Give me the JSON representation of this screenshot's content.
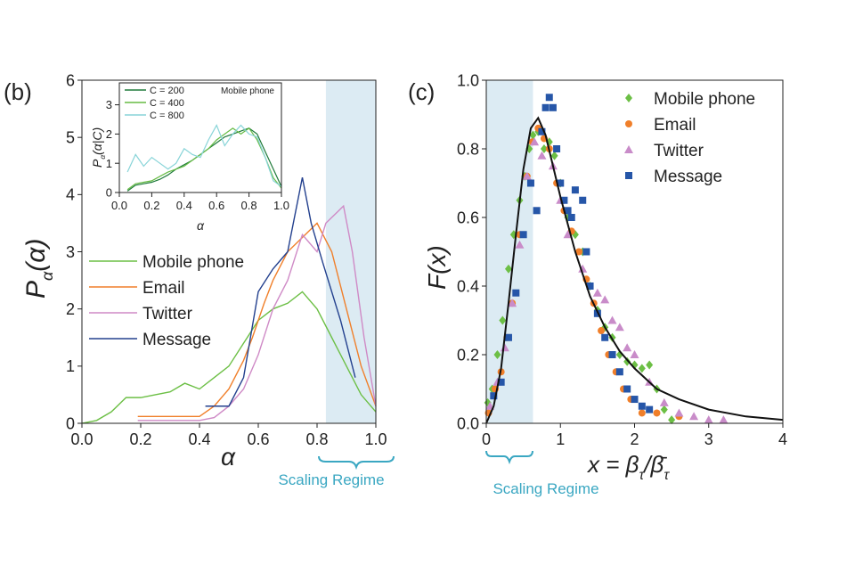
{
  "chart_data": [
    {
      "type": "line",
      "label": "(b)",
      "xlabel_parts": [
        "α"
      ],
      "ylabel_parts": [
        "P",
        "α",
        "(α)"
      ],
      "xlim": [
        0,
        1
      ],
      "ylim": [
        0,
        6
      ],
      "xticks": [
        {
          "value": 0,
          "label": "0.0"
        },
        {
          "value": 0.2,
          "label": "0.2"
        },
        {
          "value": 0.4,
          "label": "0.4"
        },
        {
          "value": 0.6,
          "label": "0.6"
        },
        {
          "value": 0.8,
          "label": "0.8"
        },
        {
          "value": 1,
          "label": "1.0"
        }
      ],
      "yticks": [
        0,
        1,
        2,
        3,
        4,
        5,
        6
      ],
      "shade": [
        0.83,
        1
      ],
      "shade_color": "#dcebf3",
      "annotation": "Scaling Regime",
      "series": [
        {
          "name": "Mobile phone",
          "color": "#6cbf45",
          "x": [
            0,
            0.05,
            0.1,
            0.15,
            0.2,
            0.25,
            0.3,
            0.35,
            0.4,
            0.45,
            0.5,
            0.55,
            0.6,
            0.65,
            0.7,
            0.75,
            0.8,
            0.85,
            0.9,
            0.95,
            1
          ],
          "values": [
            0,
            0.05,
            0.2,
            0.45,
            0.45,
            0.5,
            0.55,
            0.7,
            0.6,
            0.8,
            1.0,
            1.4,
            1.8,
            2.0,
            2.1,
            2.3,
            2.0,
            1.5,
            1.0,
            0.5,
            0.2
          ]
        },
        {
          "name": "Email",
          "color": "#f07f2a",
          "x": [
            0.19,
            0.4,
            0.45,
            0.5,
            0.55,
            0.58,
            0.62,
            0.65,
            0.7,
            0.76,
            0.8,
            0.85,
            0.9,
            0.95,
            1
          ],
          "values": [
            0.12,
            0.12,
            0.3,
            0.6,
            1.1,
            1.5,
            2.1,
            2.5,
            3.0,
            3.3,
            3.5,
            3.0,
            2.0,
            1.0,
            0.3
          ]
        },
        {
          "name": "Twitter",
          "color": "#cf8ac6",
          "x": [
            0.19,
            0.4,
            0.45,
            0.5,
            0.55,
            0.6,
            0.65,
            0.7,
            0.75,
            0.8,
            0.83,
            0.87,
            0.89,
            0.92,
            0.96,
            1
          ],
          "values": [
            0.05,
            0.05,
            0.1,
            0.3,
            0.6,
            1.2,
            2.0,
            2.5,
            3.3,
            3.0,
            3.5,
            3.7,
            3.8,
            3.0,
            1.5,
            0.3
          ]
        },
        {
          "name": "Message",
          "color": "#23408e",
          "x": [
            0.42,
            0.5,
            0.55,
            0.6,
            0.65,
            0.7,
            0.75,
            0.78,
            0.82,
            0.88,
            0.93
          ],
          "values": [
            0.3,
            0.3,
            0.8,
            2.3,
            2.7,
            3.0,
            4.3,
            3.5,
            2.8,
            1.8,
            0.8
          ]
        }
      ]
    },
    {
      "type": "line",
      "label": "Mobile phone",
      "xlabel_parts": [
        "α"
      ],
      "ylabel_parts": [
        "P",
        "α",
        "(α|C)"
      ],
      "xlim": [
        0,
        1
      ],
      "ylim": [
        0,
        3.75
      ],
      "xticks": [
        {
          "value": 0,
          "label": "0.0"
        },
        {
          "value": 0.2,
          "label": "0.2"
        },
        {
          "value": 0.4,
          "label": "0.4"
        },
        {
          "value": 0.6,
          "label": "0.6"
        },
        {
          "value": 0.8,
          "label": "0.8"
        },
        {
          "value": 1,
          "label": "1.0"
        }
      ],
      "yticks": [
        0,
        1,
        2,
        3
      ],
      "series": [
        {
          "name": "C = 200",
          "color": "#1e7a3a",
          "x": [
            0.05,
            0.1,
            0.15,
            0.2,
            0.25,
            0.3,
            0.35,
            0.4,
            0.45,
            0.5,
            0.55,
            0.6,
            0.65,
            0.7,
            0.75,
            0.8,
            0.85,
            0.9,
            0.95,
            1
          ],
          "values": [
            0.05,
            0.25,
            0.3,
            0.35,
            0.45,
            0.6,
            0.8,
            0.95,
            1.1,
            1.3,
            1.5,
            1.7,
            1.9,
            2.0,
            2.1,
            2.2,
            2.0,
            1.4,
            0.8,
            0.2
          ]
        },
        {
          "name": "C = 400",
          "color": "#66bb44",
          "x": [
            0.05,
            0.1,
            0.15,
            0.2,
            0.25,
            0.3,
            0.35,
            0.4,
            0.45,
            0.5,
            0.55,
            0.6,
            0.65,
            0.7,
            0.75,
            0.8,
            0.85,
            0.9,
            0.95,
            1
          ],
          "values": [
            0.1,
            0.3,
            0.35,
            0.4,
            0.55,
            0.7,
            0.8,
            0.9,
            1.1,
            1.3,
            1.5,
            1.8,
            2.0,
            2.2,
            2.0,
            2.2,
            1.8,
            1.2,
            0.5,
            0.15
          ]
        },
        {
          "name": "C = 800",
          "color": "#88d4d8",
          "x": [
            0.05,
            0.1,
            0.15,
            0.2,
            0.25,
            0.3,
            0.35,
            0.4,
            0.45,
            0.5,
            0.55,
            0.6,
            0.65,
            0.7,
            0.75,
            0.8,
            0.85,
            0.9,
            0.95,
            1
          ],
          "values": [
            0.7,
            1.3,
            0.9,
            1.2,
            1.0,
            0.8,
            1.0,
            1.5,
            1.3,
            1.2,
            1.8,
            2.3,
            1.6,
            2.0,
            2.3,
            2.0,
            1.9,
            1.2,
            0.4,
            0.2
          ]
        }
      ]
    },
    {
      "type": "scatter",
      "label": "(c)",
      "xlabel_parts": [
        "x = β",
        "τ",
        "/β̄",
        "τ"
      ],
      "ylabel_parts": [
        "F(x)"
      ],
      "xlim": [
        0,
        4
      ],
      "ylim": [
        0,
        1
      ],
      "xticks": [
        0,
        1,
        2,
        3,
        4
      ],
      "yticks": [
        {
          "value": 0,
          "label": "0.0"
        },
        {
          "value": 0.2,
          "label": "0.2"
        },
        {
          "value": 0.4,
          "label": "0.4"
        },
        {
          "value": 0.6,
          "label": "0.6"
        },
        {
          "value": 0.8,
          "label": "0.8"
        },
        {
          "value": 1,
          "label": "1.0"
        }
      ],
      "shade": [
        0,
        0.63
      ],
      "shade_color": "#dcebf3",
      "annotation": "Scaling Regime",
      "series": [
        {
          "name": "Mobile phone",
          "color": "#6cbf45",
          "marker": "diamond",
          "x": [
            0.02,
            0.08,
            0.15,
            0.22,
            0.3,
            0.37,
            0.45,
            0.52,
            0.58,
            0.63,
            0.7,
            0.78,
            0.85,
            0.92,
            1.0,
            1.1,
            1.2,
            1.3,
            1.4,
            1.5,
            1.6,
            1.7,
            1.8,
            1.9,
            2.0,
            2.1,
            2.2,
            2.3,
            2.4,
            2.5
          ],
          "values": [
            0.06,
            0.1,
            0.2,
            0.3,
            0.45,
            0.55,
            0.65,
            0.72,
            0.8,
            0.84,
            0.85,
            0.8,
            0.82,
            0.78,
            0.7,
            0.6,
            0.55,
            0.5,
            0.4,
            0.33,
            0.28,
            0.25,
            0.2,
            0.18,
            0.17,
            0.16,
            0.17,
            0.1,
            0.04,
            0.01
          ]
        },
        {
          "name": "Email",
          "color": "#f07f2a",
          "marker": "circle",
          "x": [
            0.03,
            0.12,
            0.2,
            0.28,
            0.35,
            0.45,
            0.55,
            0.62,
            0.7,
            0.78,
            0.85,
            0.95,
            1.05,
            1.15,
            1.25,
            1.35,
            1.45,
            1.55,
            1.65,
            1.75,
            1.85,
            1.95,
            2.1,
            2.3,
            2.6
          ],
          "values": [
            0.03,
            0.1,
            0.15,
            0.25,
            0.35,
            0.55,
            0.72,
            0.82,
            0.86,
            0.83,
            0.8,
            0.7,
            0.62,
            0.56,
            0.5,
            0.42,
            0.35,
            0.27,
            0.2,
            0.15,
            0.1,
            0.07,
            0.03,
            0.03,
            0.02
          ]
        },
        {
          "name": "Twitter",
          "color": "#c98cc9",
          "marker": "triangle",
          "x": [
            0.05,
            0.15,
            0.25,
            0.35,
            0.45,
            0.55,
            0.65,
            0.75,
            0.9,
            1.0,
            1.1,
            1.3,
            1.5,
            1.6,
            1.7,
            1.8,
            1.9,
            2.0,
            2.2,
            2.4,
            2.6,
            2.8,
            3.0,
            3.2
          ],
          "values": [
            0.05,
            0.12,
            0.22,
            0.35,
            0.52,
            0.72,
            0.82,
            0.78,
            0.75,
            0.65,
            0.55,
            0.45,
            0.38,
            0.36,
            0.3,
            0.28,
            0.22,
            0.2,
            0.12,
            0.06,
            0.03,
            0.02,
            0.01,
            0.01
          ]
        },
        {
          "name": "Message",
          "color": "#2656a8",
          "marker": "square",
          "x": [
            0.1,
            0.2,
            0.3,
            0.4,
            0.5,
            0.6,
            0.68,
            0.75,
            0.8,
            0.85,
            0.9,
            0.95,
            1.0,
            1.05,
            1.1,
            1.15,
            1.2,
            1.3,
            1.35,
            1.4,
            1.5,
            1.6,
            1.7,
            1.8,
            1.9,
            2.0,
            2.1,
            2.2
          ],
          "values": [
            0.08,
            0.12,
            0.25,
            0.38,
            0.55,
            0.7,
            0.62,
            0.85,
            0.92,
            0.95,
            0.92,
            0.8,
            0.7,
            0.65,
            0.62,
            0.6,
            0.68,
            0.65,
            0.5,
            0.4,
            0.32,
            0.25,
            0.2,
            0.15,
            0.1,
            0.07,
            0.05,
            0.04
          ]
        }
      ],
      "curve": {
        "color": "#111111",
        "x": [
          0,
          0.1,
          0.2,
          0.3,
          0.4,
          0.5,
          0.6,
          0.7,
          0.8,
          0.9,
          1.0,
          1.2,
          1.4,
          1.6,
          1.8,
          2.0,
          2.3,
          2.6,
          3.0,
          3.5,
          4.0
        ],
        "values": [
          0,
          0.05,
          0.16,
          0.35,
          0.55,
          0.74,
          0.86,
          0.89,
          0.84,
          0.75,
          0.66,
          0.5,
          0.37,
          0.28,
          0.21,
          0.16,
          0.1,
          0.07,
          0.04,
          0.02,
          0.01
        ]
      }
    }
  ]
}
